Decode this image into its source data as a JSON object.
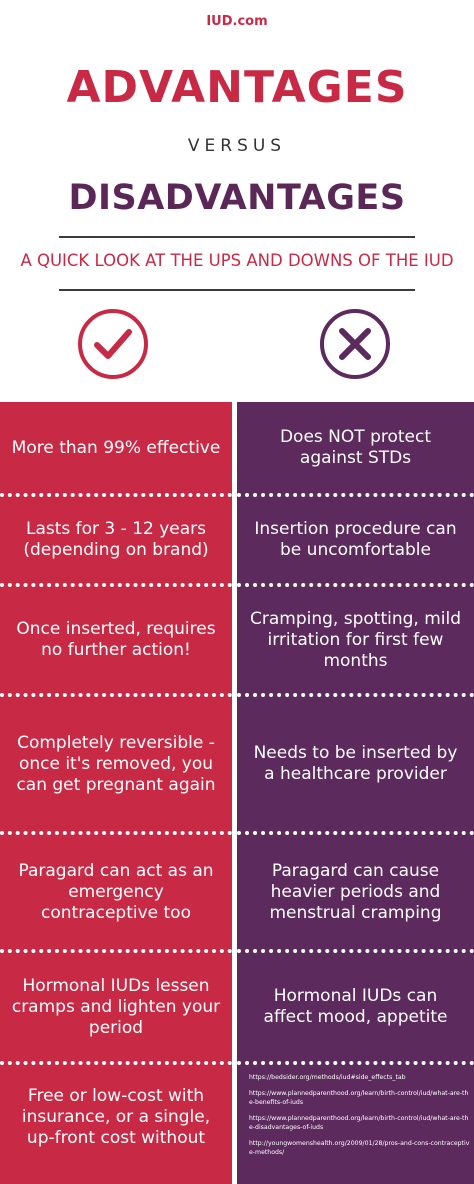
{
  "header": {
    "brand": "IUD.com",
    "title_advantages": "ADVANTAGES",
    "versus": "VERSUS",
    "title_disadvantages": "DISADVANTAGES",
    "tagline": "A QUICK LOOK AT THE UPS AND DOWNS OF THE IUD",
    "check_icon": "check-circle-icon",
    "cross_icon": "x-circle-icon"
  },
  "colors": {
    "advantage": "#c82a46",
    "disadvantage": "#5c2a5d",
    "text_dark": "#333333"
  },
  "advantages": [
    "More than 99% effective",
    "Lasts for 3 - 12 years (depending on brand)",
    "Once inserted, requires no further action!",
    "Completely reversible - once it's removed, you can get pregnant again",
    "Paragard can act as an emergency contraceptive too",
    "Hormonal IUDs lessen cramps and lighten your period",
    "Free or low-cost with insurance, or a single, up-front cost without"
  ],
  "disadvantages": [
    "Does NOT protect against STDs",
    "Insertion procedure can be uncomfortable",
    "Cramping, spotting, mild irritation for first few months",
    "Needs to be inserted by a healthcare provider",
    "Paragard can cause heavier periods and menstrual cramping",
    "Hormonal IUDs can affect mood, appetite"
  ],
  "references": [
    "https://bedsider.org/methods/iud#side_effects_tab",
    "https://www.plannedparenthood.org/learn/birth-control/iud/what-are-the-benefits-of-iuds",
    "https://www.plannedparenthood.org/learn/birth-control/iud/what-are-the-disadvantages-of-iuds",
    "http://youngwomenshealth.org/2009/01/28/pros-and-cons-contraceptive-methods/"
  ]
}
